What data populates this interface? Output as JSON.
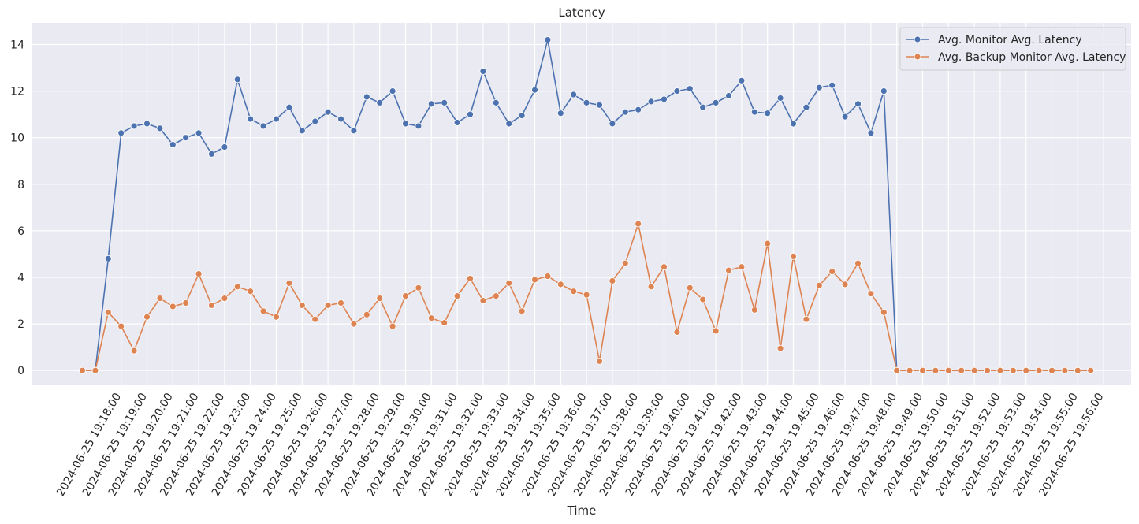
{
  "chart_data": {
    "type": "line",
    "title": "Latency",
    "xlabel": "Time",
    "ylabel": "",
    "ylim": [
      -0.65,
      14.9
    ],
    "yticks": [
      0,
      2,
      4,
      6,
      8,
      10,
      12,
      14
    ],
    "grid": true,
    "legend_position": "top-right",
    "x_tick_labels": [
      "2024-06-25 19:18:00",
      "2024-06-25 19:19:00",
      "2024-06-25 19:20:00",
      "2024-06-25 19:21:00",
      "2024-06-25 19:22:00",
      "2024-06-25 19:23:00",
      "2024-06-25 19:24:00",
      "2024-06-25 19:25:00",
      "2024-06-25 19:26:00",
      "2024-06-25 19:27:00",
      "2024-06-25 19:28:00",
      "2024-06-25 19:29:00",
      "2024-06-25 19:30:00",
      "2024-06-25 19:31:00",
      "2024-06-25 19:32:00",
      "2024-06-25 19:33:00",
      "2024-06-25 19:34:00",
      "2024-06-25 19:35:00",
      "2024-06-25 19:36:00",
      "2024-06-25 19:37:00",
      "2024-06-25 19:38:00",
      "2024-06-25 19:39:00",
      "2024-06-25 19:40:00",
      "2024-06-25 19:41:00",
      "2024-06-25 19:42:00",
      "2024-06-25 19:43:00",
      "2024-06-25 19:44:00",
      "2024-06-25 19:45:00",
      "2024-06-25 19:46:00",
      "2024-06-25 19:47:00",
      "2024-06-25 19:48:00",
      "2024-06-25 19:49:00",
      "2024-06-25 19:50:00",
      "2024-06-25 19:51:00",
      "2024-06-25 19:52:00",
      "2024-06-25 19:53:00",
      "2024-06-25 19:54:00",
      "2024-06-25 19:55:00",
      "2024-06-25 19:56:00"
    ],
    "x_start_minutes": -0.5,
    "x_step_minutes": 0.5,
    "series": [
      {
        "name": "Avg. Monitor Avg. Latency",
        "color": "#4c72b0",
        "values": [
          0,
          0,
          4.8,
          10.2,
          10.5,
          10.6,
          10.4,
          9.7,
          10.0,
          10.2,
          9.3,
          9.6,
          12.5,
          10.8,
          10.5,
          10.8,
          11.3,
          10.3,
          10.7,
          11.1,
          10.8,
          10.3,
          11.75,
          11.5,
          12.0,
          10.6,
          10.5,
          11.45,
          11.5,
          10.65,
          11.0,
          12.85,
          11.5,
          10.6,
          10.95,
          12.05,
          14.2,
          11.05,
          11.85,
          11.5,
          11.4,
          10.6,
          11.1,
          11.2,
          11.55,
          11.65,
          12.0,
          12.1,
          11.3,
          11.5,
          11.8,
          12.45,
          11.1,
          11.05,
          11.7,
          10.6,
          11.3,
          12.15,
          12.25,
          10.9,
          11.45,
          10.2,
          12.0,
          0,
          0,
          0,
          0,
          0,
          0,
          0,
          0,
          0,
          0,
          0,
          0,
          0,
          0,
          0,
          0
        ]
      },
      {
        "name": "Avg. Backup Monitor Avg. Latency",
        "color": "#dd8452",
        "values": [
          0,
          0,
          2.5,
          1.9,
          0.85,
          2.3,
          3.1,
          2.75,
          2.9,
          4.15,
          2.8,
          3.1,
          3.6,
          3.4,
          2.55,
          2.3,
          3.75,
          2.8,
          2.2,
          2.8,
          2.9,
          2.0,
          2.4,
          3.1,
          1.9,
          3.2,
          3.55,
          2.25,
          2.05,
          3.2,
          3.95,
          3.0,
          3.2,
          3.75,
          2.55,
          3.9,
          4.05,
          3.7,
          3.4,
          3.25,
          0.4,
          3.85,
          4.6,
          6.3,
          3.6,
          4.45,
          1.65,
          3.55,
          3.05,
          1.7,
          4.3,
          4.45,
          2.6,
          5.45,
          0.95,
          4.9,
          2.2,
          3.65,
          4.25,
          3.7,
          4.6,
          3.3,
          2.5,
          0,
          0,
          0,
          0,
          0,
          0,
          0,
          0,
          0,
          0,
          0,
          0,
          0,
          0,
          0,
          0
        ]
      }
    ]
  }
}
